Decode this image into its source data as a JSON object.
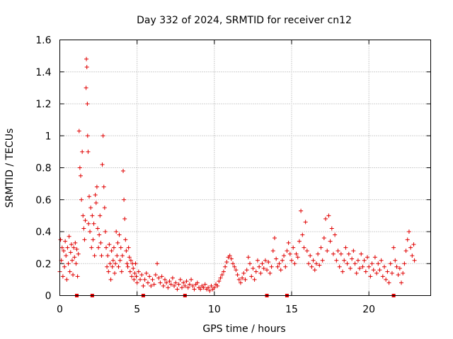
{
  "chart_data": {
    "type": "scatter",
    "title": "Day 332 of 2024, SRMTID for receiver cn12",
    "xlabel": "GPS time / hours",
    "ylabel": "SRMTID / TECUs",
    "xlim": [
      0,
      24
    ],
    "ylim": [
      0,
      1.6
    ],
    "xticks": [
      0,
      5,
      10,
      15,
      20
    ],
    "xtick_labels": [
      "0",
      "5",
      "10",
      "15",
      "20"
    ],
    "yticks": [
      0,
      0.2,
      0.4,
      0.6,
      0.8,
      1.0,
      1.2,
      1.4,
      1.6
    ],
    "ytick_labels": [
      "0",
      "0.2",
      "0.4",
      "0.6",
      "0.8",
      "1",
      "1.2",
      "1.4",
      "1.6"
    ],
    "grid": true,
    "marker": "plus",
    "series_color": "#e00000",
    "points": [
      [
        0.0,
        0.15
      ],
      [
        0.05,
        0.35
      ],
      [
        0.1,
        0.22
      ],
      [
        0.15,
        0.3
      ],
      [
        0.2,
        0.12
      ],
      [
        0.25,
        0.28
      ],
      [
        0.3,
        0.18
      ],
      [
        0.35,
        0.34
      ],
      [
        0.4,
        0.25
      ],
      [
        0.45,
        0.1
      ],
      [
        0.5,
        0.3
      ],
      [
        0.55,
        0.2
      ],
      [
        0.6,
        0.37
      ],
      [
        0.65,
        0.15
      ],
      [
        0.7,
        0.27
      ],
      [
        0.75,
        0.32
      ],
      [
        0.8,
        0.22
      ],
      [
        0.85,
        0.13
      ],
      [
        0.9,
        0.3
      ],
      [
        0.95,
        0.24
      ],
      [
        1.0,
        0.33
      ],
      [
        1.05,
        0.2
      ],
      [
        1.1,
        0.29
      ],
      [
        1.15,
        0.12
      ],
      [
        1.2,
        0.26
      ],
      [
        1.25,
        1.03
      ],
      [
        1.3,
        0.8
      ],
      [
        1.35,
        0.75
      ],
      [
        1.4,
        0.6
      ],
      [
        1.45,
        0.9
      ],
      [
        1.5,
        0.5
      ],
      [
        1.55,
        0.42
      ],
      [
        1.6,
        0.35
      ],
      [
        1.65,
        0.47
      ],
      [
        1.7,
        1.3
      ],
      [
        1.72,
        1.48
      ],
      [
        1.75,
        1.43
      ],
      [
        1.78,
        1.2
      ],
      [
        1.8,
        1.0
      ],
      [
        1.83,
        0.9
      ],
      [
        1.86,
        0.45
      ],
      [
        1.9,
        0.62
      ],
      [
        1.95,
        0.4
      ],
      [
        2.0,
        0.55
      ],
      [
        2.05,
        0.3
      ],
      [
        2.1,
        0.5
      ],
      [
        2.15,
        0.35
      ],
      [
        2.2,
        0.45
      ],
      [
        2.25,
        0.25
      ],
      [
        2.3,
        0.63
      ],
      [
        2.35,
        0.58
      ],
      [
        2.4,
        0.68
      ],
      [
        2.45,
        0.42
      ],
      [
        2.5,
        0.3
      ],
      [
        2.55,
        0.38
      ],
      [
        2.6,
        0.5
      ],
      [
        2.65,
        0.33
      ],
      [
        2.7,
        0.25
      ],
      [
        2.75,
        0.82
      ],
      [
        2.8,
        1.0
      ],
      [
        2.85,
        0.68
      ],
      [
        2.9,
        0.55
      ],
      [
        2.95,
        0.4
      ],
      [
        3.0,
        0.3
      ],
      [
        3.05,
        0.18
      ],
      [
        3.1,
        0.25
      ],
      [
        3.15,
        0.15
      ],
      [
        3.2,
        0.32
      ],
      [
        3.25,
        0.2
      ],
      [
        3.3,
        0.1
      ],
      [
        3.35,
        0.28
      ],
      [
        3.4,
        0.18
      ],
      [
        3.45,
        0.22
      ],
      [
        3.5,
        0.3
      ],
      [
        3.55,
        0.14
      ],
      [
        3.6,
        0.2
      ],
      [
        3.65,
        0.4
      ],
      [
        3.7,
        0.25
      ],
      [
        3.75,
        0.33
      ],
      [
        3.8,
        0.18
      ],
      [
        3.85,
        0.38
      ],
      [
        3.9,
        0.22
      ],
      [
        3.95,
        0.3
      ],
      [
        4.0,
        0.15
      ],
      [
        4.05,
        0.25
      ],
      [
        4.1,
        0.78
      ],
      [
        4.15,
        0.6
      ],
      [
        4.2,
        0.48
      ],
      [
        4.25,
        0.35
      ],
      [
        4.3,
        0.28
      ],
      [
        4.35,
        0.2
      ],
      [
        4.4,
        0.18
      ],
      [
        4.45,
        0.3
      ],
      [
        4.5,
        0.24
      ],
      [
        4.55,
        0.15
      ],
      [
        4.6,
        0.22
      ],
      [
        4.65,
        0.12
      ],
      [
        4.7,
        0.2
      ],
      [
        4.75,
        0.17
      ],
      [
        4.8,
        0.1
      ],
      [
        4.85,
        0.14
      ],
      [
        4.9,
        0.2
      ],
      [
        4.95,
        0.12
      ],
      [
        5.0,
        0.08
      ],
      [
        5.1,
        0.15
      ],
      [
        5.2,
        0.1
      ],
      [
        5.3,
        0.13
      ],
      [
        5.4,
        0.06
      ],
      [
        5.5,
        0.1
      ],
      [
        5.6,
        0.14
      ],
      [
        5.7,
        0.08
      ],
      [
        5.8,
        0.12
      ],
      [
        5.9,
        0.06
      ],
      [
        6.0,
        0.1
      ],
      [
        6.1,
        0.07
      ],
      [
        6.2,
        0.13
      ],
      [
        6.3,
        0.2
      ],
      [
        6.4,
        0.11
      ],
      [
        6.5,
        0.08
      ],
      [
        6.6,
        0.12
      ],
      [
        6.7,
        0.06
      ],
      [
        6.8,
        0.1
      ],
      [
        6.9,
        0.08
      ],
      [
        7.0,
        0.05
      ],
      [
        7.1,
        0.09
      ],
      [
        7.2,
        0.07
      ],
      [
        7.3,
        0.11
      ],
      [
        7.4,
        0.06
      ],
      [
        7.5,
        0.08
      ],
      [
        7.6,
        0.04
      ],
      [
        7.7,
        0.07
      ],
      [
        7.8,
        0.1
      ],
      [
        7.9,
        0.05
      ],
      [
        8.0,
        0.08
      ],
      [
        8.1,
        0.06
      ],
      [
        8.2,
        0.09
      ],
      [
        8.3,
        0.05
      ],
      [
        8.4,
        0.07
      ],
      [
        8.5,
        0.1
      ],
      [
        8.6,
        0.06
      ],
      [
        8.7,
        0.04
      ],
      [
        8.8,
        0.07
      ],
      [
        8.9,
        0.08
      ],
      [
        9.0,
        0.05
      ],
      [
        9.1,
        0.04
      ],
      [
        9.2,
        0.06
      ],
      [
        9.3,
        0.05
      ],
      [
        9.4,
        0.07
      ],
      [
        9.5,
        0.04
      ],
      [
        9.6,
        0.05
      ],
      [
        9.7,
        0.03
      ],
      [
        9.8,
        0.06
      ],
      [
        9.9,
        0.04
      ],
      [
        10.0,
        0.05
      ],
      [
        10.1,
        0.07
      ],
      [
        10.2,
        0.06
      ],
      [
        10.3,
        0.09
      ],
      [
        10.4,
        0.11
      ],
      [
        10.5,
        0.13
      ],
      [
        10.6,
        0.15
      ],
      [
        10.7,
        0.18
      ],
      [
        10.8,
        0.21
      ],
      [
        10.9,
        0.24
      ],
      [
        11.0,
        0.25
      ],
      [
        11.1,
        0.23
      ],
      [
        11.2,
        0.2
      ],
      [
        11.3,
        0.18
      ],
      [
        11.4,
        0.16
      ],
      [
        11.5,
        0.13
      ],
      [
        11.6,
        0.1
      ],
      [
        11.7,
        0.08
      ],
      [
        11.8,
        0.11
      ],
      [
        11.9,
        0.14
      ],
      [
        12.0,
        0.1
      ],
      [
        12.1,
        0.16
      ],
      [
        12.2,
        0.24
      ],
      [
        12.3,
        0.2
      ],
      [
        12.4,
        0.12
      ],
      [
        12.5,
        0.17
      ],
      [
        12.6,
        0.1
      ],
      [
        12.7,
        0.15
      ],
      [
        12.8,
        0.22
      ],
      [
        12.9,
        0.18
      ],
      [
        13.0,
        0.14
      ],
      [
        13.1,
        0.2
      ],
      [
        13.2,
        0.17
      ],
      [
        13.3,
        0.22
      ],
      [
        13.4,
        0.16
      ],
      [
        13.5,
        0.21
      ],
      [
        13.6,
        0.14
      ],
      [
        13.7,
        0.18
      ],
      [
        13.8,
        0.28
      ],
      [
        13.9,
        0.36
      ],
      [
        14.0,
        0.23
      ],
      [
        14.1,
        0.18
      ],
      [
        14.2,
        0.2
      ],
      [
        14.3,
        0.16
      ],
      [
        14.4,
        0.22
      ],
      [
        14.5,
        0.25
      ],
      [
        14.6,
        0.18
      ],
      [
        14.7,
        0.28
      ],
      [
        14.8,
        0.33
      ],
      [
        14.9,
        0.26
      ],
      [
        15.0,
        0.22
      ],
      [
        15.1,
        0.3
      ],
      [
        15.2,
        0.2
      ],
      [
        15.3,
        0.26
      ],
      [
        15.4,
        0.24
      ],
      [
        15.5,
        0.34
      ],
      [
        15.6,
        0.53
      ],
      [
        15.7,
        0.38
      ],
      [
        15.8,
        0.3
      ],
      [
        15.9,
        0.46
      ],
      [
        16.0,
        0.28
      ],
      [
        16.1,
        0.2
      ],
      [
        16.2,
        0.25
      ],
      [
        16.3,
        0.18
      ],
      [
        16.4,
        0.22
      ],
      [
        16.5,
        0.16
      ],
      [
        16.6,
        0.2
      ],
      [
        16.7,
        0.26
      ],
      [
        16.8,
        0.19
      ],
      [
        16.9,
        0.3
      ],
      [
        17.0,
        0.22
      ],
      [
        17.1,
        0.36
      ],
      [
        17.2,
        0.48
      ],
      [
        17.3,
        0.28
      ],
      [
        17.4,
        0.5
      ],
      [
        17.5,
        0.34
      ],
      [
        17.6,
        0.42
      ],
      [
        17.7,
        0.26
      ],
      [
        17.8,
        0.38
      ],
      [
        17.9,
        0.22
      ],
      [
        18.0,
        0.28
      ],
      [
        18.1,
        0.18
      ],
      [
        18.2,
        0.26
      ],
      [
        18.3,
        0.15
      ],
      [
        18.4,
        0.22
      ],
      [
        18.5,
        0.3
      ],
      [
        18.6,
        0.2
      ],
      [
        18.7,
        0.26
      ],
      [
        18.8,
        0.17
      ],
      [
        18.9,
        0.23
      ],
      [
        19.0,
        0.28
      ],
      [
        19.1,
        0.2
      ],
      [
        19.2,
        0.14
      ],
      [
        19.3,
        0.22
      ],
      [
        19.4,
        0.17
      ],
      [
        19.5,
        0.26
      ],
      [
        19.6,
        0.18
      ],
      [
        19.7,
        0.22
      ],
      [
        19.8,
        0.15
      ],
      [
        19.9,
        0.24
      ],
      [
        20.0,
        0.18
      ],
      [
        20.1,
        0.12
      ],
      [
        20.2,
        0.2
      ],
      [
        20.3,
        0.16
      ],
      [
        20.4,
        0.24
      ],
      [
        20.5,
        0.14
      ],
      [
        20.6,
        0.2
      ],
      [
        20.7,
        0.16
      ],
      [
        20.8,
        0.22
      ],
      [
        20.9,
        0.12
      ],
      [
        21.0,
        0.18
      ],
      [
        21.1,
        0.1
      ],
      [
        21.2,
        0.15
      ],
      [
        21.3,
        0.08
      ],
      [
        21.4,
        0.2
      ],
      [
        21.5,
        0.14
      ],
      [
        21.6,
        0.3
      ],
      [
        21.7,
        0.22
      ],
      [
        21.8,
        0.18
      ],
      [
        21.9,
        0.13
      ],
      [
        22.0,
        0.17
      ],
      [
        22.1,
        0.08
      ],
      [
        22.2,
        0.14
      ],
      [
        22.3,
        0.2
      ],
      [
        22.4,
        0.28
      ],
      [
        22.5,
        0.35
      ],
      [
        22.6,
        0.4
      ],
      [
        22.7,
        0.3
      ],
      [
        22.8,
        0.25
      ],
      [
        22.9,
        0.32
      ],
      [
        22.95,
        0.22
      ]
    ],
    "baseline_markers": [
      1.1,
      2.1,
      5.4,
      8.1,
      13.4,
      14.7,
      21.6
    ]
  }
}
